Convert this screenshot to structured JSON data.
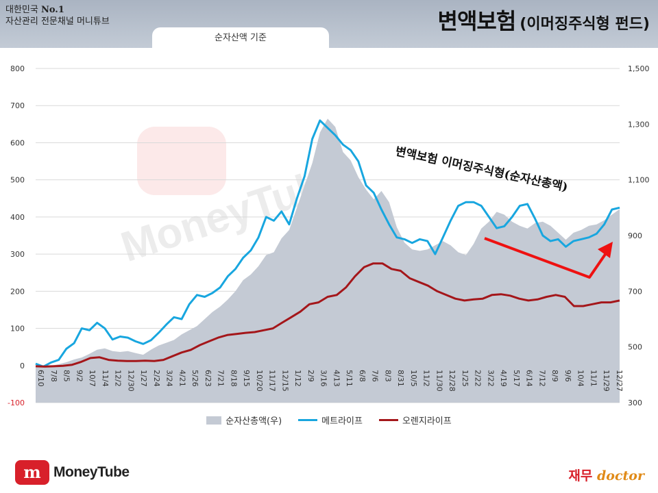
{
  "header": {
    "tagline_line1_prefix": "대한민국 ",
    "tagline_line1_bold": "No.1",
    "tagline_line2": "자산관리 전문채널 머니튜브",
    "basis_label": "순자산액 기준",
    "title_main": "변액보험",
    "title_sub": "(이머징주식형 펀드)"
  },
  "watermark": {
    "text": "MoneyTube"
  },
  "annotation": {
    "text": "변액보험 이머징주식형(순자산총액)"
  },
  "footer": {
    "logo_icon": "m",
    "logo_text": "MoneyTube",
    "jm_korean": "재무",
    "jm_doctor": "doctor"
  },
  "colors": {
    "area": "#c4cad4",
    "metlife": "#18a6df",
    "orange_life": "#a4161a",
    "arrow": "#ee1111"
  },
  "chart_data": {
    "type": "line",
    "left_axis": {
      "ticks": [
        "800",
        "700",
        "600",
        "500",
        "400",
        "300",
        "200",
        "100",
        "0",
        "-100"
      ],
      "ylim": [
        -100,
        800
      ]
    },
    "right_axis": {
      "ticks": [
        "1,500",
        "1,300",
        "1,100",
        "900",
        "700",
        "500",
        "300"
      ],
      "ylim": [
        300,
        1500
      ]
    },
    "x_ticks": [
      "6/10",
      "7/8",
      "8/5",
      "9/2",
      "10/7",
      "11/4",
      "12/2",
      "12/30",
      "1/27",
      "2/24",
      "3/24",
      "4/21",
      "5/26",
      "6/23",
      "7/21",
      "8/18",
      "9/15",
      "10/20",
      "11/17",
      "12/15",
      "1/12",
      "2/9",
      "3/16",
      "4/13",
      "5/11",
      "6/8",
      "7/6",
      "8/3",
      "8/31",
      "10/5",
      "11/2",
      "11/30",
      "12/28",
      "1/25",
      "2/22",
      "3/22",
      "4/19",
      "5/17",
      "6/14",
      "7/12",
      "8/9",
      "9/6",
      "10/4",
      "11/1",
      "11/29",
      "12/27"
    ],
    "series": [
      {
        "name": "순자산총액(우)",
        "kind": "area",
        "axis": "right",
        "values": [
          435,
          425,
          432,
          438,
          445,
          455,
          462,
          475,
          490,
          495,
          485,
          482,
          485,
          478,
          472,
          490,
          505,
          515,
          525,
          545,
          560,
          575,
          600,
          625,
          645,
          670,
          700,
          740,
          760,
          790,
          830,
          840,
          890,
          920,
          1000,
          1080,
          1160,
          1270,
          1320,
          1290,
          1200,
          1170,
          1110,
          1065,
          1030,
          1060,
          1020,
          930,
          875,
          850,
          845,
          850,
          865,
          880,
          865,
          840,
          830,
          870,
          925,
          950,
          985,
          975,
          950,
          935,
          925,
          945,
          950,
          935,
          910,
          885,
          910,
          920,
          935,
          940,
          955,
          975,
          995
        ]
      },
      {
        "name": "메트라이프",
        "kind": "line",
        "axis": "left",
        "values": [
          5,
          -3,
          8,
          15,
          45,
          60,
          100,
          95,
          115,
          100,
          70,
          78,
          75,
          65,
          58,
          68,
          88,
          110,
          130,
          125,
          165,
          190,
          185,
          195,
          210,
          240,
          260,
          290,
          310,
          345,
          400,
          390,
          415,
          380,
          450,
          510,
          610,
          660,
          640,
          620,
          595,
          580,
          550,
          485,
          465,
          420,
          380,
          345,
          340,
          330,
          340,
          335,
          300,
          345,
          390,
          430,
          440,
          440,
          430,
          400,
          370,
          375,
          400,
          430,
          435,
          395,
          350,
          335,
          340,
          320,
          335,
          340,
          345,
          355,
          380,
          420,
          425
        ]
      },
      {
        "name": "오렌지라이프",
        "kind": "line",
        "axis": "left",
        "values": [
          -2,
          -3,
          -2,
          -1,
          2,
          10,
          20,
          22,
          15,
          13,
          12,
          12,
          13,
          12,
          15,
          25,
          35,
          42,
          55,
          65,
          75,
          82,
          85,
          88,
          90,
          95,
          100,
          115,
          130,
          145,
          165,
          170,
          185,
          190,
          210,
          240,
          265,
          275,
          275,
          260,
          255,
          235,
          225,
          215,
          200,
          190,
          180,
          175,
          178,
          180,
          190,
          192,
          188,
          180,
          175,
          178,
          185,
          190,
          185,
          160,
          160,
          165,
          170,
          170,
          175
        ]
      }
    ],
    "legend": [
      "순자산총액(우)",
      "메트라이프",
      "오렌지라이프"
    ],
    "grid": true,
    "legend_position": "bottom"
  }
}
